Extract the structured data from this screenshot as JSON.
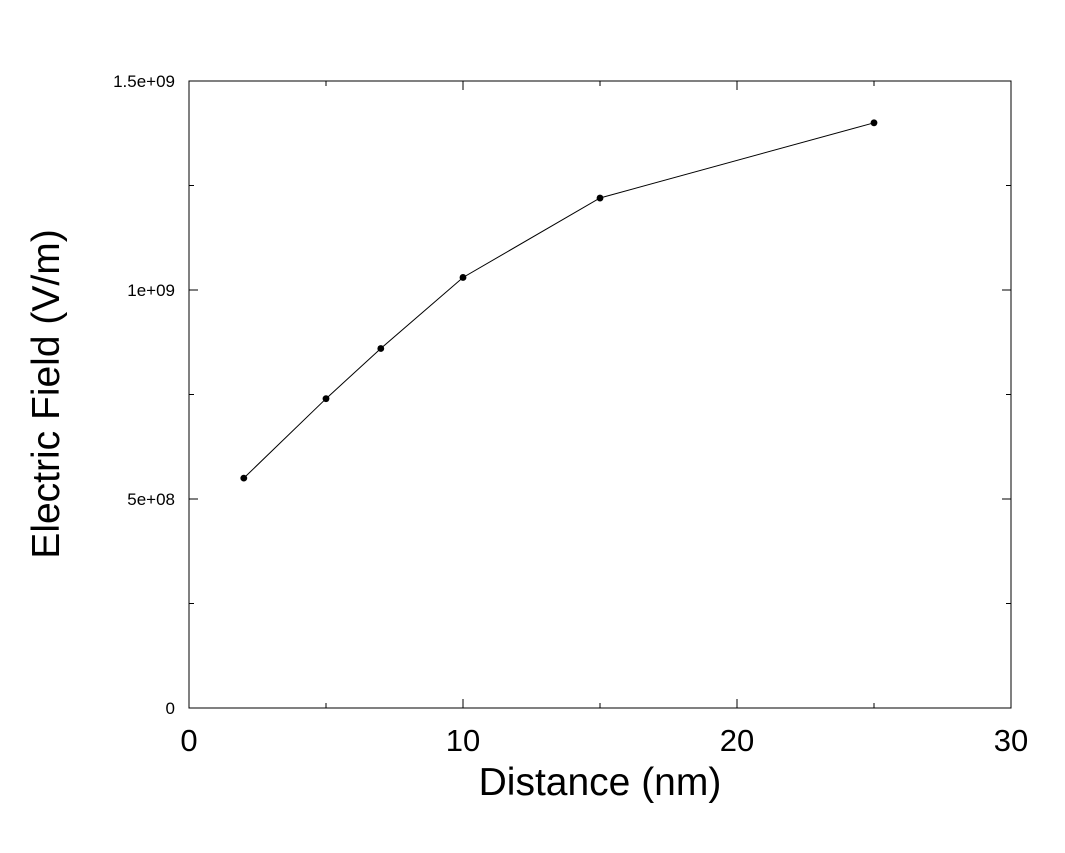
{
  "chart_data": {
    "type": "line",
    "title": "",
    "xlabel": "Distance (nm)",
    "ylabel": "Electric Field (V/m)",
    "xlim": [
      0,
      30
    ],
    "ylim": [
      0,
      1500000000
    ],
    "x_ticks": [
      {
        "value": 0,
        "label": "0"
      },
      {
        "value": 10,
        "label": "10"
      },
      {
        "value": 20,
        "label": "20"
      },
      {
        "value": 30,
        "label": "30"
      }
    ],
    "y_ticks": [
      {
        "value": 0,
        "label": "0"
      },
      {
        "value": 500000000,
        "label": "5e+08"
      },
      {
        "value": 1000000000,
        "label": "1e+09"
      },
      {
        "value": 1500000000,
        "label": "1.5e+09"
      }
    ],
    "grid": false,
    "legend": "none",
    "series": [
      {
        "x": [
          2,
          5,
          7,
          10,
          15,
          25
        ],
        "y": [
          550000000,
          740000000,
          860000000,
          1030000000,
          1220000000,
          1400000000
        ],
        "color": "#000000",
        "marker": "circle"
      }
    ]
  }
}
